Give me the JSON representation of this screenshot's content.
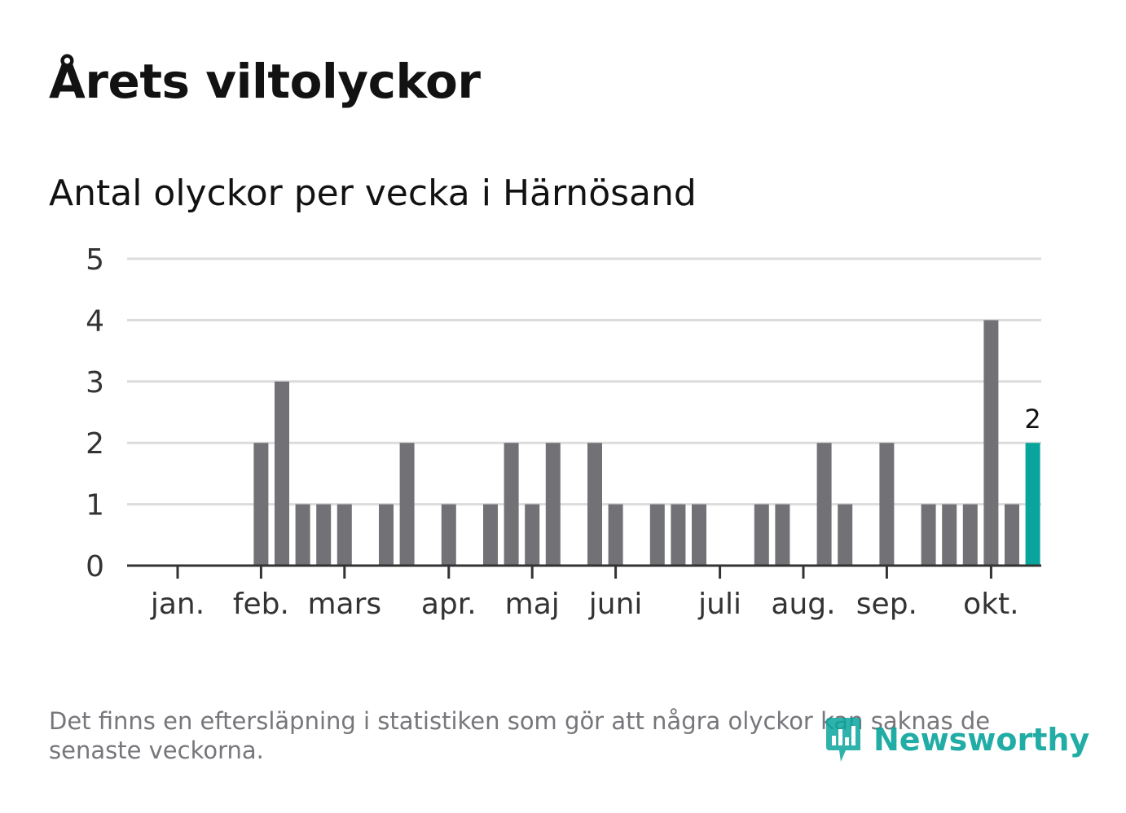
{
  "header": {
    "title": "Årets viltolyckor",
    "subtitle": "Antal olyckor per vecka i Härnösand"
  },
  "footnote": "Det finns en eftersläpning i statistiken som gör att några olyckor kan saknas de senaste veckorna.",
  "logo": {
    "text": "Newsworthy",
    "icon": "newsworthy-chart-icon"
  },
  "colors": {
    "bar": "#727176",
    "highlight": "#09a59c",
    "grid": "#dcdcdc",
    "axis": "#333333",
    "text": "#121212"
  },
  "chart_data": {
    "type": "bar",
    "title": "Antal olyckor per vecka i Härnösand",
    "xlabel": "",
    "ylabel": "",
    "ylim": [
      0,
      5
    ],
    "yticks": [
      0,
      1,
      2,
      3,
      4,
      5
    ],
    "week_values": [
      0,
      0,
      0,
      0,
      2,
      3,
      1,
      1,
      1,
      0,
      1,
      2,
      0,
      1,
      0,
      1,
      2,
      1,
      2,
      0,
      2,
      1,
      0,
      1,
      1,
      1,
      0,
      0,
      1,
      1,
      0,
      2,
      1,
      0,
      2,
      0,
      1,
      1,
      1,
      4,
      1,
      2
    ],
    "month_ticks": [
      {
        "label": "jan.",
        "week": 0.5
      },
      {
        "label": "feb.",
        "week": 4.5
      },
      {
        "label": "mars",
        "week": 8.5
      },
      {
        "label": "apr.",
        "week": 13.5
      },
      {
        "label": "maj",
        "week": 17.5
      },
      {
        "label": "juni",
        "week": 21.5
      },
      {
        "label": "juli",
        "week": 26.5
      },
      {
        "label": "aug.",
        "week": 30.5
      },
      {
        "label": "sep.",
        "week": 34.5
      },
      {
        "label": "okt.",
        "week": 39.5
      }
    ],
    "highlight_index": 41,
    "highlight_label": "2",
    "legend": "none",
    "grid": true
  }
}
